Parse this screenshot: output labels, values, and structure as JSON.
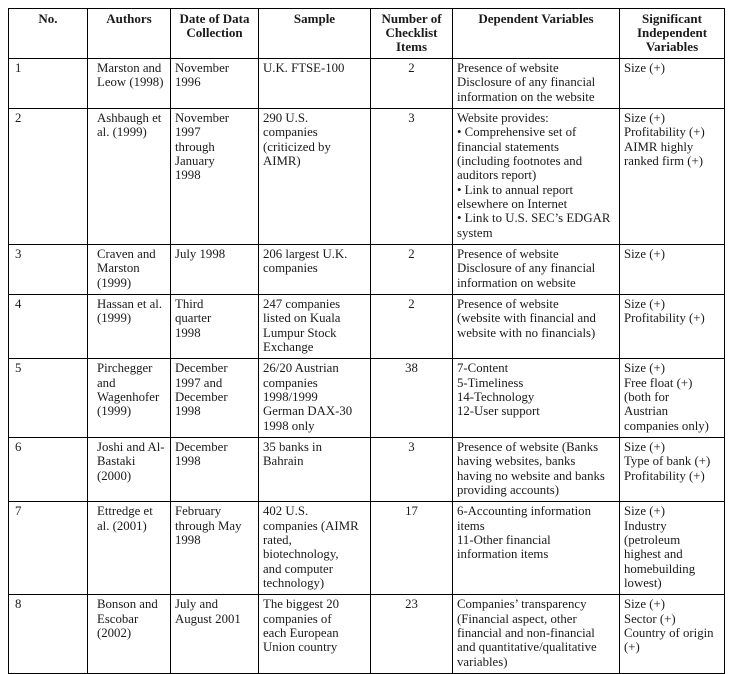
{
  "table": {
    "headers": [
      "No.",
      "Authors",
      "Date of Data\nCollection",
      "Sample",
      "Number of\nChecklist\nItems",
      "Dependent Variables",
      "Significant\nIndependent\nVariables"
    ],
    "rows": [
      {
        "no": "1",
        "authors": "Marston and\nLeow (1998)",
        "date": "November\n1996",
        "sample": "U.K. FTSE-100",
        "checklist": "2",
        "dependent": "Presence of website\nDisclosure of any financial\ninformation on the website",
        "significant": "Size (+)"
      },
      {
        "no": "2",
        "authors": "Ashbaugh et\nal. (1999)",
        "date": "November\n1997\nthrough\nJanuary\n1998",
        "sample": "290 U.S.\ncompanies\n(criticized by\nAIMR)",
        "checklist": "3",
        "dependent": "Website provides:\n• Comprehensive set of\nfinancial statements\n(including footnotes and\nauditors report)\n• Link to annual report\nelsewhere on Internet\n• Link to U.S. SEC’s EDGAR\nsystem",
        "significant": "Size (+)\nProfitability (+)\nAIMR highly\nranked firm (+)"
      },
      {
        "no": "3",
        "authors": "Craven and\nMarston\n(1999)",
        "date": "July 1998",
        "sample": "206 largest U.K.\ncompanies",
        "checklist": "2",
        "dependent": "Presence of website\nDisclosure of any financial\ninformation on website",
        "significant": "Size (+)"
      },
      {
        "no": "4",
        "authors": "Hassan et al.\n(1999)",
        "date": "Third\nquarter\n1998",
        "sample": "247 companies\nlisted on Kuala\nLumpur Stock\nExchange",
        "checklist": "2",
        "dependent": "Presence of website\n(website with financial and\nwebsite with no financials)",
        "significant": "Size (+)\nProfitability (+)"
      },
      {
        "no": "5",
        "authors": "Pirchegger\nand\nWagenhofer\n(1999)",
        "date": "December\n1997 and\nDecember\n1998",
        "sample": "26/20 Austrian\ncompanies\n1998/1999\nGerman DAX-30\n1998 only",
        "checklist": "38",
        "dependent": "7-Content\n5-Timeliness\n14-Technology\n12-User support",
        "significant": "Size (+)\nFree float (+)\n(both for\nAustrian\ncompanies only)"
      },
      {
        "no": "6",
        "authors": "Joshi and Al-\nBastaki\n(2000)",
        "date": "December\n1998",
        "sample": "35 banks in\nBahrain",
        "checklist": "3",
        "dependent": "Presence of website (Banks\nhaving websites, banks\nhaving no website and banks\nproviding accounts)",
        "significant": "Size (+)\nType of bank (+)\nProfitability (+)"
      },
      {
        "no": "7",
        "authors": "Ettredge et\nal. (2001)",
        "date": "February\nthrough May\n1998",
        "sample": "402 U.S.\ncompanies (AIMR\nrated,\nbiotechnology,\nand computer\ntechnology)",
        "checklist": "17",
        "dependent": "6-Accounting information\nitems\n11-Other financial\ninformation items",
        "significant": "Size (+)\nIndustry\n(petroleum\nhighest and\nhomebuilding\nlowest)"
      },
      {
        "no": "8",
        "authors": "Bonson and\nEscobar\n(2002)",
        "date": "July and\nAugust 2001",
        "sample": "The biggest 20\ncompanies of\neach European\nUnion country",
        "checklist": "23",
        "dependent": "Companies’ transparency\n(Financial aspect, other\nfinancial and non-financial\nand quantitative/qualitative\nvariables)",
        "significant": "Size (+)\nSector (+)\nCountry of origin\n(+)"
      }
    ]
  },
  "colors": {
    "text": "#1a1a1a",
    "border": "#000000",
    "background": "#ffffff"
  }
}
